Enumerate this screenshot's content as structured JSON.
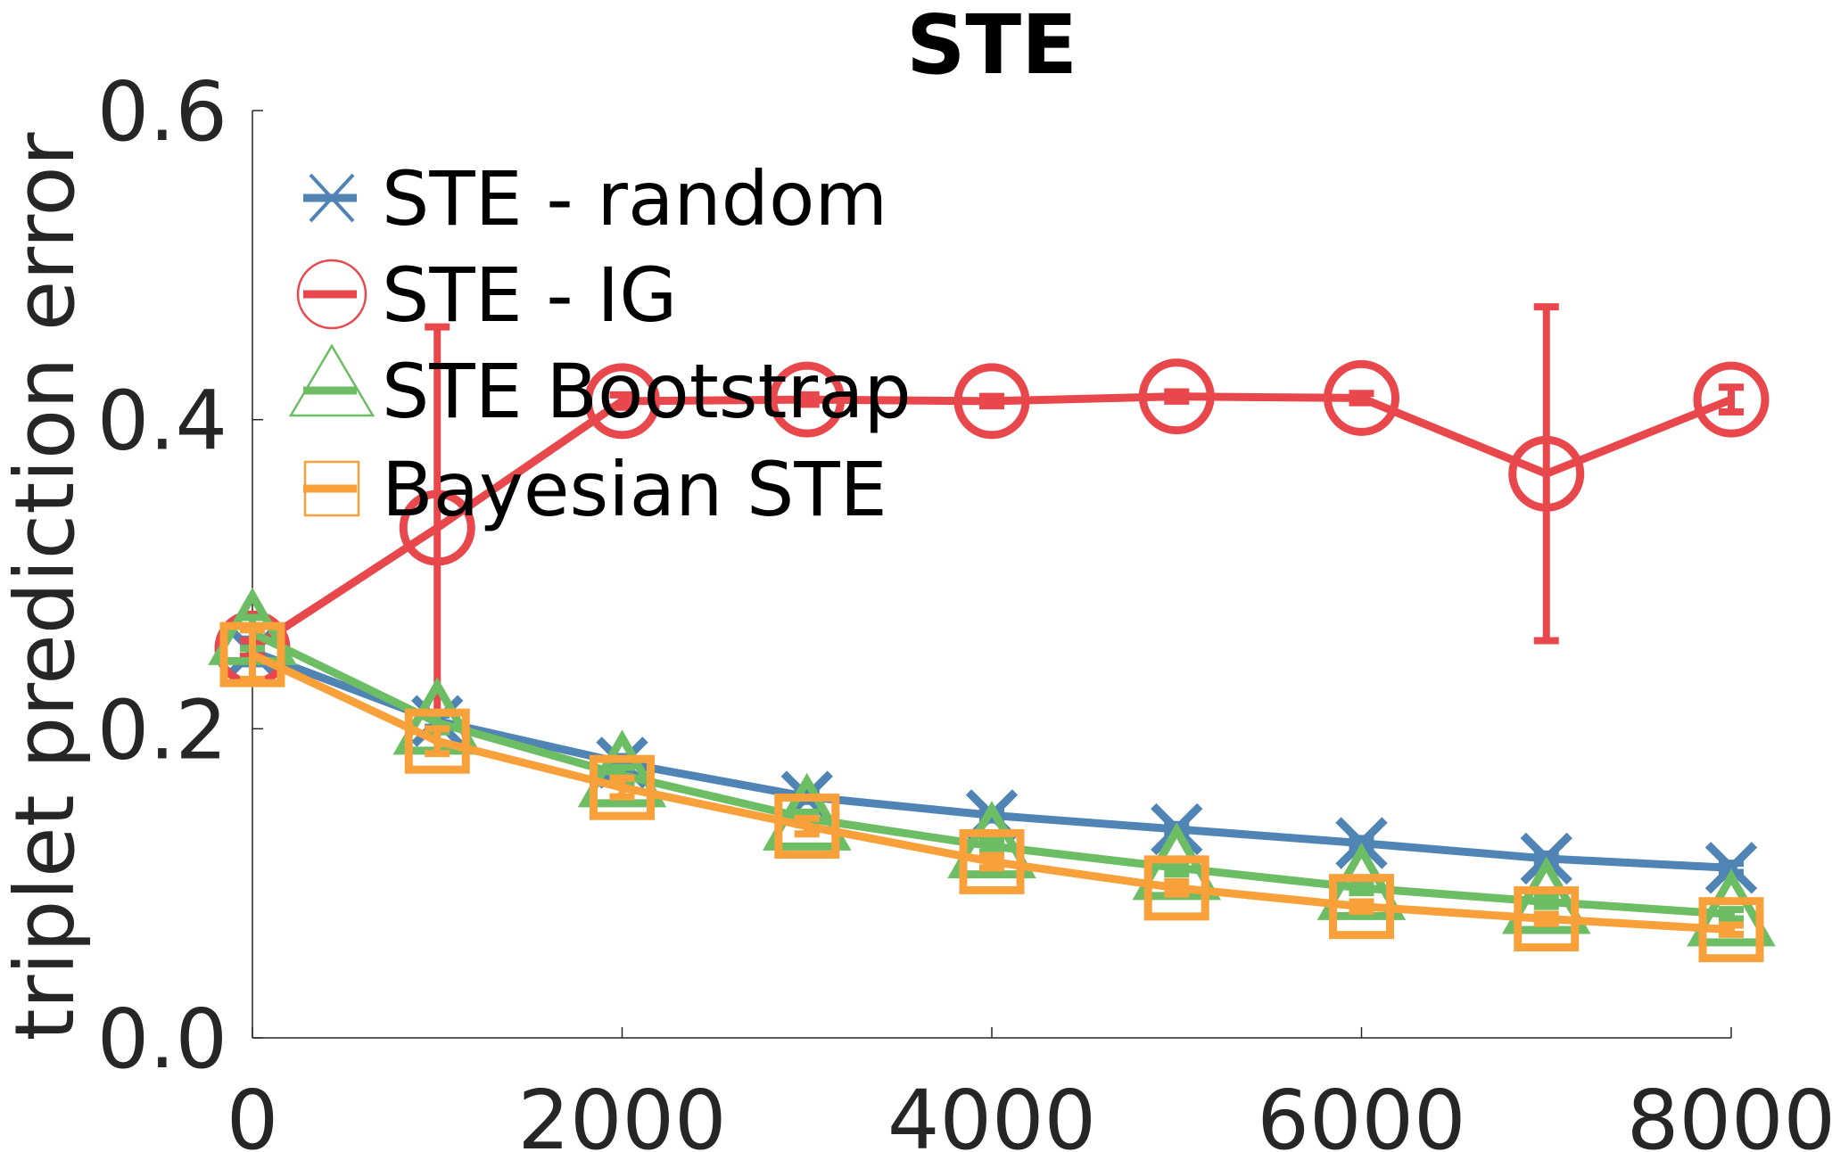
{
  "chart_data": {
    "type": "line",
    "title": "STE",
    "xlabel": "",
    "ylabel": "triplet prediction error",
    "xlim": [
      0,
      8000
    ],
    "ylim": [
      0,
      0.6
    ],
    "x_ticks": [
      0,
      2000,
      4000,
      6000,
      8000
    ],
    "x_tick_labels": [
      "0",
      "2000",
      "4000",
      "6000",
      "8000"
    ],
    "y_ticks": [
      0,
      0.2,
      0.4,
      0.6
    ],
    "y_tick_labels": [
      "0.0",
      "0.2",
      "0.4",
      "0.6"
    ],
    "grid": false,
    "legend_position": "top-left",
    "x": [
      0,
      1000,
      2000,
      3000,
      4000,
      5000,
      6000,
      7000,
      8000
    ],
    "series": [
      {
        "name": "STE - random",
        "color": "#5084b5",
        "marker": "x",
        "values": [
          0.25,
          0.205,
          0.178,
          0.156,
          0.144,
          0.135,
          0.126,
          0.116,
          0.11
        ],
        "errors": [
          0.008,
          0.004,
          0.004,
          0.003,
          0.003,
          0.003,
          0.003,
          0.003,
          0.003
        ]
      },
      {
        "name": "STE - IG",
        "color": "#e8474c",
        "marker": "circle",
        "values": [
          0.252,
          0.33,
          0.412,
          0.413,
          0.412,
          0.415,
          0.414,
          0.365,
          0.413
        ],
        "errors": [
          0.005,
          0.13,
          0.004,
          0.003,
          0.003,
          0.003,
          0.003,
          0.108,
          0.008
        ]
      },
      {
        "name": "STE Bootstrap",
        "color": "#6dbd64",
        "marker": "triangle",
        "values": [
          0.262,
          0.204,
          0.17,
          0.142,
          0.124,
          0.11,
          0.097,
          0.088,
          0.08
        ],
        "errors": [
          0.01,
          0.006,
          0.005,
          0.004,
          0.004,
          0.004,
          0.003,
          0.003,
          0.003
        ]
      },
      {
        "name": "Bayesian STE",
        "color": "#f8a03a",
        "marker": "square",
        "values": [
          0.248,
          0.192,
          0.162,
          0.137,
          0.114,
          0.097,
          0.085,
          0.077,
          0.07
        ],
        "errors": [
          0.016,
          0.008,
          0.006,
          0.005,
          0.004,
          0.004,
          0.003,
          0.003,
          0.003
        ]
      }
    ]
  }
}
